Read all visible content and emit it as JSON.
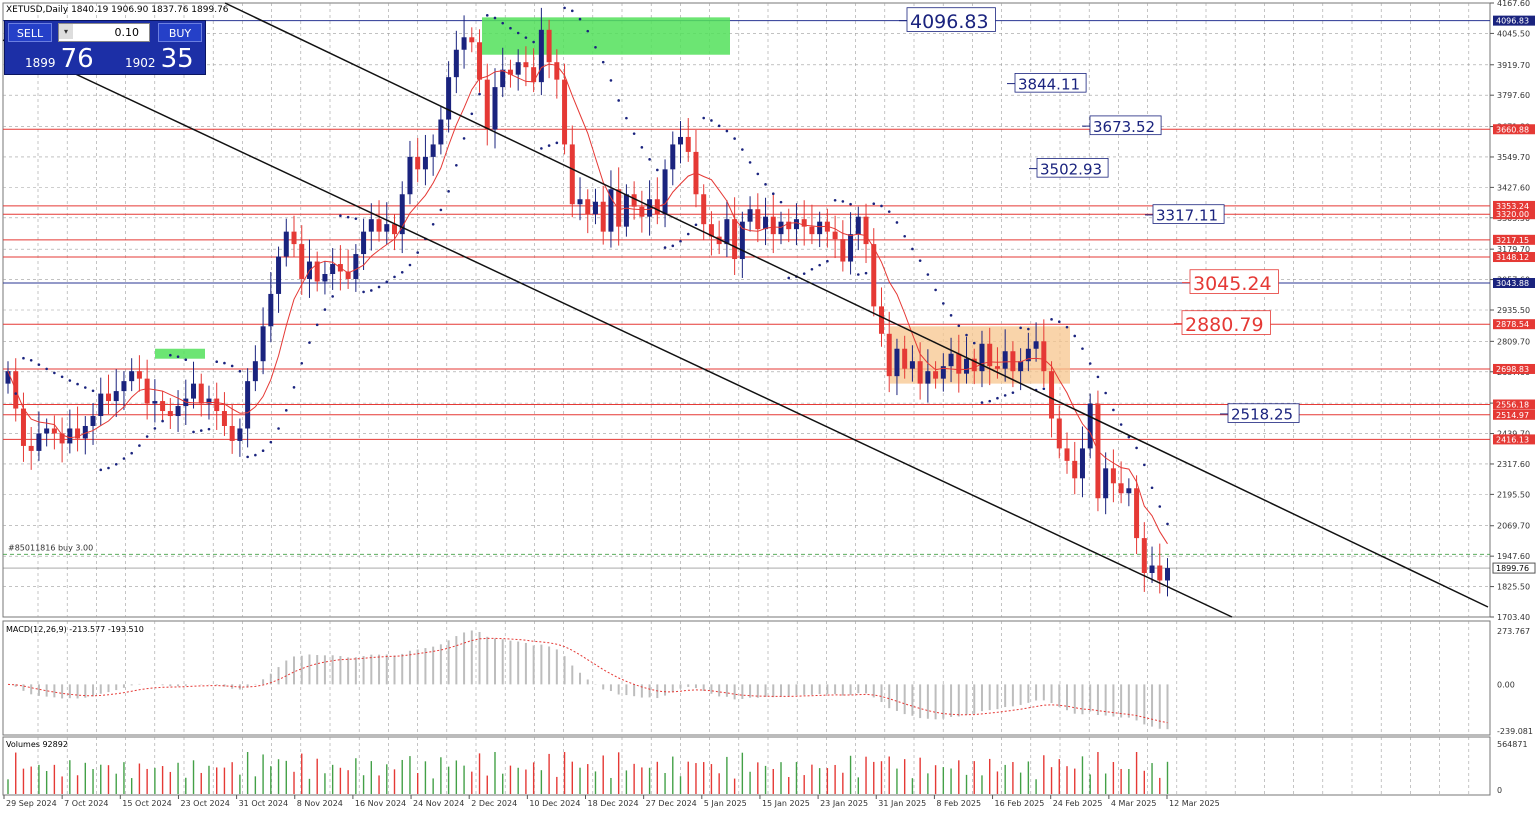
{
  "symbol_header": "XETUSD,Daily  1840.19 1906.90 1837.76 1899.76",
  "trade_panel": {
    "sell_label": "SELL",
    "buy_label": "BUY",
    "lot": "0.10",
    "sell_small": "1899",
    "sell_big": "76",
    "buy_small": "1902",
    "buy_big": "35"
  },
  "order_label": "#85011816 buy 3.00",
  "macd_label": "MACD(12,26,9) -213.577 -193.510",
  "volumes_label": "Volumes 92892",
  "colors": {
    "bull": "#1a237e",
    "bear": "#e53935",
    "grid": "#9e9e9e",
    "level": "#e53935",
    "blue_level": "#283593",
    "ma": "#e53935",
    "dots": "#1a237e",
    "green_box": "#52e05a",
    "orange_box": "#f7c68d"
  },
  "chart_data": {
    "type": "candlestick",
    "ylim": [
      1703.4,
      4167.6
    ],
    "y_ticks": [
      "4167.60",
      "4045.50",
      "3919.70",
      "3797.60",
      "3671.80",
      "3549.70",
      "3427.60",
      "3305.50",
      "3179.70",
      "3057.60",
      "2935.50",
      "2809.70",
      "2687.60",
      "2561.80",
      "2439.70",
      "2317.60",
      "2195.50",
      "2069.70",
      "1947.60",
      "1825.50",
      "1703.40"
    ],
    "x_labels": [
      "29 Sep 2024",
      "7 Oct 2024",
      "15 Oct 2024",
      "23 Oct 2024",
      "31 Oct 2024",
      "8 Nov 2024",
      "16 Nov 2024",
      "24 Nov 2024",
      "2 Dec 2024",
      "10 Dec 2024",
      "18 Dec 2024",
      "27 Dec 2024",
      "5 Jan 2025",
      "15 Jan 2025",
      "23 Jan 2025",
      "31 Jan 2025",
      "8 Feb 2025",
      "16 Feb 2025",
      "24 Feb 2025",
      "4 Mar 2025",
      "12 Mar 2025"
    ],
    "right_level_labels": [
      "4096.83",
      "3660.88",
      "3353.24",
      "3320.00",
      "3217.15",
      "3148.12",
      "3043.88",
      "2878.54",
      "2698.83",
      "2556.18",
      "2514.97",
      "2416.13",
      "1899.76"
    ],
    "level_annotations": [
      {
        "text": "4096.83",
        "value": 4096.83,
        "color": "blue"
      },
      {
        "text": "3844.11",
        "value": 3844.11,
        "color": "blue"
      },
      {
        "text": "3673.52",
        "value": 3673.52,
        "color": "blue"
      },
      {
        "text": "3502.93",
        "value": 3502.93,
        "color": "blue"
      },
      {
        "text": "3317.11",
        "value": 3317.11,
        "color": "blue"
      },
      {
        "text": "3045.24",
        "value": 3045.24,
        "color": "red"
      },
      {
        "text": "2880.79",
        "value": 2880.79,
        "color": "red"
      },
      {
        "text": "2518.25",
        "value": 2518.25,
        "color": "blue"
      }
    ],
    "close": [
      2690,
      2540,
      2390,
      2370,
      2440,
      2460,
      2440,
      2400,
      2460,
      2420,
      2470,
      2510,
      2600,
      2570,
      2610,
      2650,
      2690,
      2660,
      2560,
      2570,
      2530,
      2510,
      2550,
      2580,
      2640,
      2560,
      2580,
      2530,
      2470,
      2410,
      2460,
      2650,
      2730,
      2870,
      3000,
      3150,
      3250,
      3200,
      3060,
      3130,
      3050,
      3080,
      3120,
      3090,
      3060,
      3160,
      3250,
      3300,
      3250,
      3280,
      3240,
      3400,
      3550,
      3500,
      3550,
      3600,
      3700,
      3870,
      3980,
      4030,
      4010,
      3860,
      3660,
      3830,
      3900,
      3880,
      3930,
      3910,
      3850,
      4060,
      3930,
      3860,
      3600,
      3360,
      3380,
      3320,
      3370,
      3250,
      3420,
      3270,
      3400,
      3350,
      3310,
      3380,
      3320,
      3500,
      3600,
      3630,
      3570,
      3400,
      3280,
      3230,
      3200,
      3300,
      3140,
      3290,
      3340,
      3260,
      3310,
      3240,
      3290,
      3260,
      3300,
      3270,
      3240,
      3290,
      3250,
      3220,
      3130,
      3240,
      3310,
      3200,
      2950,
      2840,
      2670,
      2780,
      2700,
      2730,
      2640,
      2690,
      2660,
      2710,
      2760,
      2680,
      2740,
      2690,
      2800,
      2710,
      2700,
      2770,
      2690,
      2730,
      2780,
      2810,
      2690,
      2500,
      2380,
      2330,
      2260,
      2380,
      2560,
      2180,
      2300,
      2240,
      2200,
      2220,
      2020,
      1880,
      1910,
      1850,
      1899.76
    ],
    "macd_ylim": [
      -239.081,
      273.767
    ],
    "macd_ticks": [
      "273.767",
      "0.00",
      "-239.081"
    ],
    "volume_ticks": [
      "564871",
      "0"
    ]
  }
}
